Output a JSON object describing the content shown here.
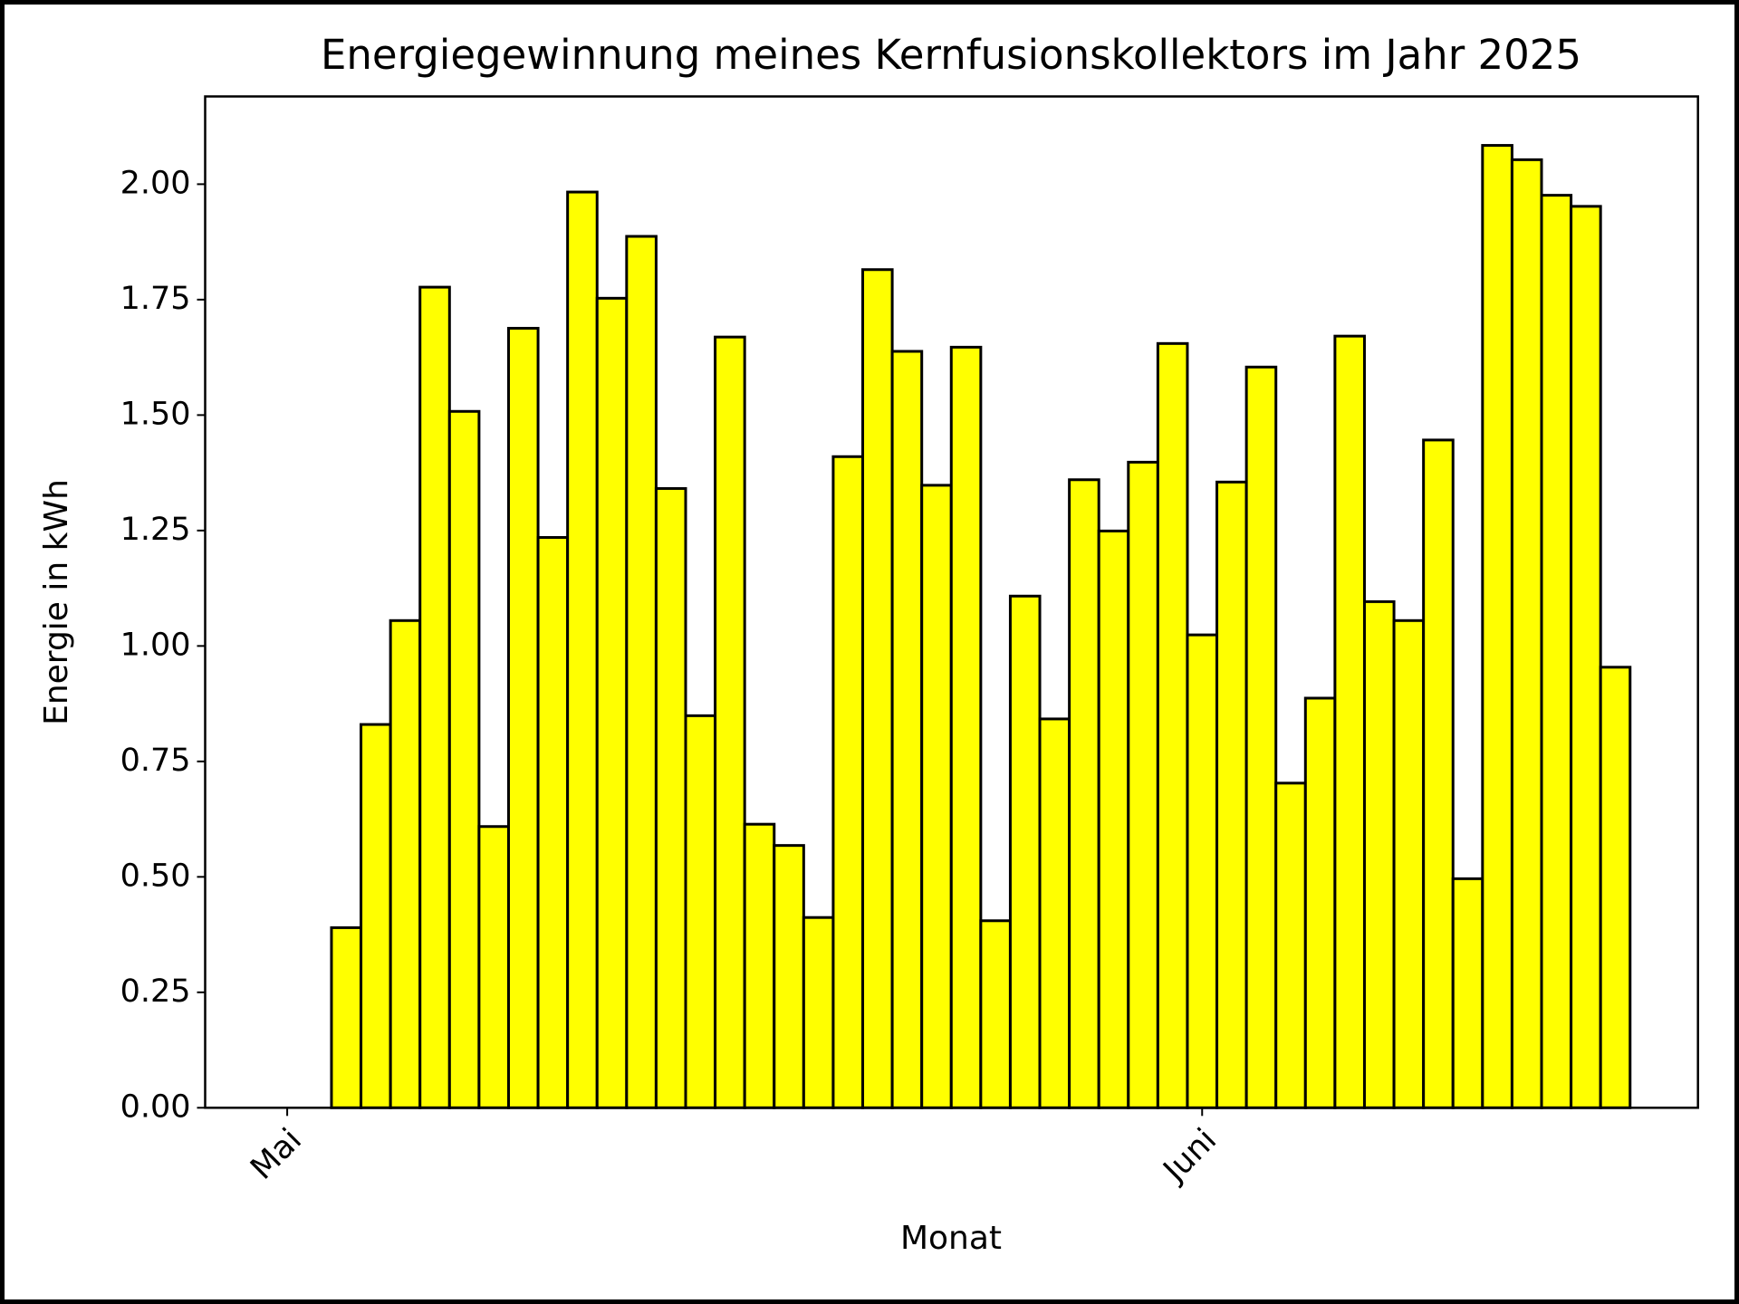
{
  "chart_data": {
    "type": "bar",
    "title": "Energiegewinnung meines Kernfusionskollektors im Jahr 2025",
    "x_label": "Monat",
    "y_label": "Energie in kWh",
    "categories": [
      "Mai",
      null,
      null,
      null,
      null,
      null,
      null,
      null,
      null,
      null,
      null,
      null,
      null,
      null,
      null,
      null,
      null,
      null,
      null,
      null,
      null,
      null,
      null,
      null,
      null,
      null,
      null,
      null,
      null,
      null,
      null,
      "Juni",
      null,
      null,
      null,
      null,
      null,
      null,
      null,
      null,
      null,
      null,
      null,
      null,
      null,
      null
    ],
    "values": [
      0,
      0,
      0.39,
      0.83,
      1.055,
      1.777,
      1.508,
      0.609,
      1.688,
      1.235,
      1.983,
      1.753,
      1.887,
      1.341,
      0.849,
      1.669,
      0.614,
      0.568,
      0.412,
      1.41,
      1.815,
      1.638,
      1.348,
      1.647,
      0.405,
      1.108,
      0.842,
      1.36,
      1.249,
      1.398,
      1.655,
      1.024,
      1.355,
      1.604,
      0.703,
      0.887,
      1.671,
      1.096,
      1.055,
      1.446,
      0.496,
      2.084,
      2.053,
      1.976,
      1.952,
      0.954
    ],
    "color": "#ffff00",
    "edge_color": "#000000",
    "ylim": [
      0,
      2.19
    ],
    "yticks": [
      {
        "value": 0,
        "label": "0.00"
      },
      {
        "value": 0.25,
        "label": "0.25"
      },
      {
        "value": 0.5,
        "label": "0.50"
      },
      {
        "value": 0.75,
        "label": "0.75"
      },
      {
        "value": 1,
        "label": "1.00"
      },
      {
        "value": 1.25,
        "label": "1.25"
      },
      {
        "value": 1.5,
        "label": "1.50"
      },
      {
        "value": 1.75,
        "label": "1.75"
      },
      {
        "value": 2,
        "label": "2.00"
      }
    ],
    "grid": false
  }
}
